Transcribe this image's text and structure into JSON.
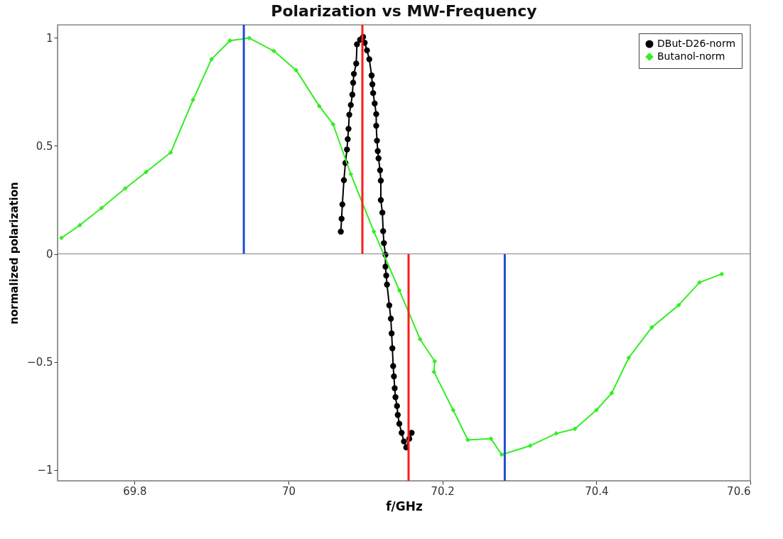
{
  "chart_data": {
    "type": "line",
    "title": "Polarization vs MW-Frequency",
    "xlabel": "f/GHz",
    "ylabel": "normalized polarization",
    "xlim": [
      69.7,
      70.6
    ],
    "xticks": [
      69.8,
      70,
      70.2,
      70.4,
      70.6
    ],
    "ylim": [
      -1.05,
      1.06
    ],
    "yticks": [
      {
        "value": -1,
        "label": "−1"
      },
      {
        "value": -0.5,
        "label": "−0.5"
      },
      0,
      0.5,
      1
    ],
    "grid": false,
    "legend": "top right",
    "ref_lines": [
      {
        "axis": "y",
        "value": 0,
        "color": "#808080"
      }
    ],
    "series": [
      {
        "name": "DBut-D26-norm",
        "color": "#000000",
        "marker": "circle",
        "x": [
          70.068,
          70.069,
          70.07,
          70.072,
          70.074,
          70.076,
          70.077,
          70.078,
          70.079,
          70.081,
          70.083,
          70.084,
          70.085,
          70.088,
          70.089,
          70.093,
          70.097,
          70.099,
          70.102,
          70.105,
          70.108,
          70.109,
          70.11,
          70.112,
          70.114,
          70.114,
          70.115,
          70.116,
          70.117,
          70.119,
          70.12,
          70.12,
          70.122,
          70.123,
          70.124,
          70.126,
          70.126,
          70.127,
          70.128,
          70.131,
          70.133,
          70.134,
          70.135,
          70.136,
          70.137,
          70.138,
          70.139,
          70.141,
          70.142,
          70.144,
          70.147,
          70.15,
          70.153,
          70.157,
          70.16
        ],
        "values": [
          0.103,
          0.163,
          0.229,
          0.341,
          0.421,
          0.483,
          0.531,
          0.579,
          0.644,
          0.689,
          0.737,
          0.792,
          0.833,
          0.881,
          0.97,
          0.991,
          1.004,
          0.977,
          0.942,
          0.901,
          0.826,
          0.785,
          0.744,
          0.696,
          0.647,
          0.593,
          0.524,
          0.476,
          0.442,
          0.387,
          0.339,
          0.249,
          0.191,
          0.105,
          0.05,
          -0.004,
          -0.059,
          -0.1,
          -0.142,
          -0.238,
          -0.3,
          -0.368,
          -0.437,
          -0.519,
          -0.567,
          -0.622,
          -0.663,
          -0.704,
          -0.745,
          -0.786,
          -0.828,
          -0.868,
          -0.896,
          -0.855,
          -0.828
        ]
      },
      {
        "name": "Butanol-norm",
        "color": "#33ee22",
        "marker": "diamond",
        "x": [
          69.705,
          69.729,
          69.757,
          69.788,
          69.815,
          69.847,
          69.876,
          69.9,
          69.924,
          69.949,
          69.981,
          70.01,
          70.04,
          70.058,
          70.081,
          70.111,
          70.144,
          70.171,
          70.19,
          70.189,
          70.214,
          70.233,
          70.263,
          70.277,
          70.314,
          70.348,
          70.372,
          70.4,
          70.42,
          70.442,
          70.472,
          70.507,
          70.534,
          70.563
        ],
        "values": [
          0.074,
          0.133,
          0.212,
          0.303,
          0.379,
          0.469,
          0.713,
          0.901,
          0.987,
          0.999,
          0.939,
          0.85,
          0.684,
          0.6,
          0.369,
          0.103,
          -0.169,
          -0.395,
          -0.497,
          -0.546,
          -0.723,
          -0.861,
          -0.855,
          -0.929,
          -0.888,
          -0.831,
          -0.81,
          -0.723,
          -0.644,
          -0.481,
          -0.34,
          -0.237,
          -0.132,
          -0.093
        ]
      },
      {
        "type": "line",
        "color": "#1f4fd0",
        "marker": "none",
        "x": [
          69.942,
          69.942
        ],
        "values": [
          0,
          1.06
        ]
      },
      {
        "type": "line",
        "color": "#ff1a1a",
        "marker": "none",
        "x": [
          70.096,
          70.096
        ],
        "values": [
          0,
          1.06
        ]
      },
      {
        "type": "line",
        "color": "#ff1a1a",
        "marker": "none",
        "x": [
          70.156,
          70.156
        ],
        "values": [
          -1.05,
          0
        ]
      },
      {
        "type": "line",
        "color": "#1f4fd0",
        "marker": "none",
        "x": [
          70.281,
          70.281
        ],
        "values": [
          -1.05,
          0
        ]
      }
    ]
  }
}
